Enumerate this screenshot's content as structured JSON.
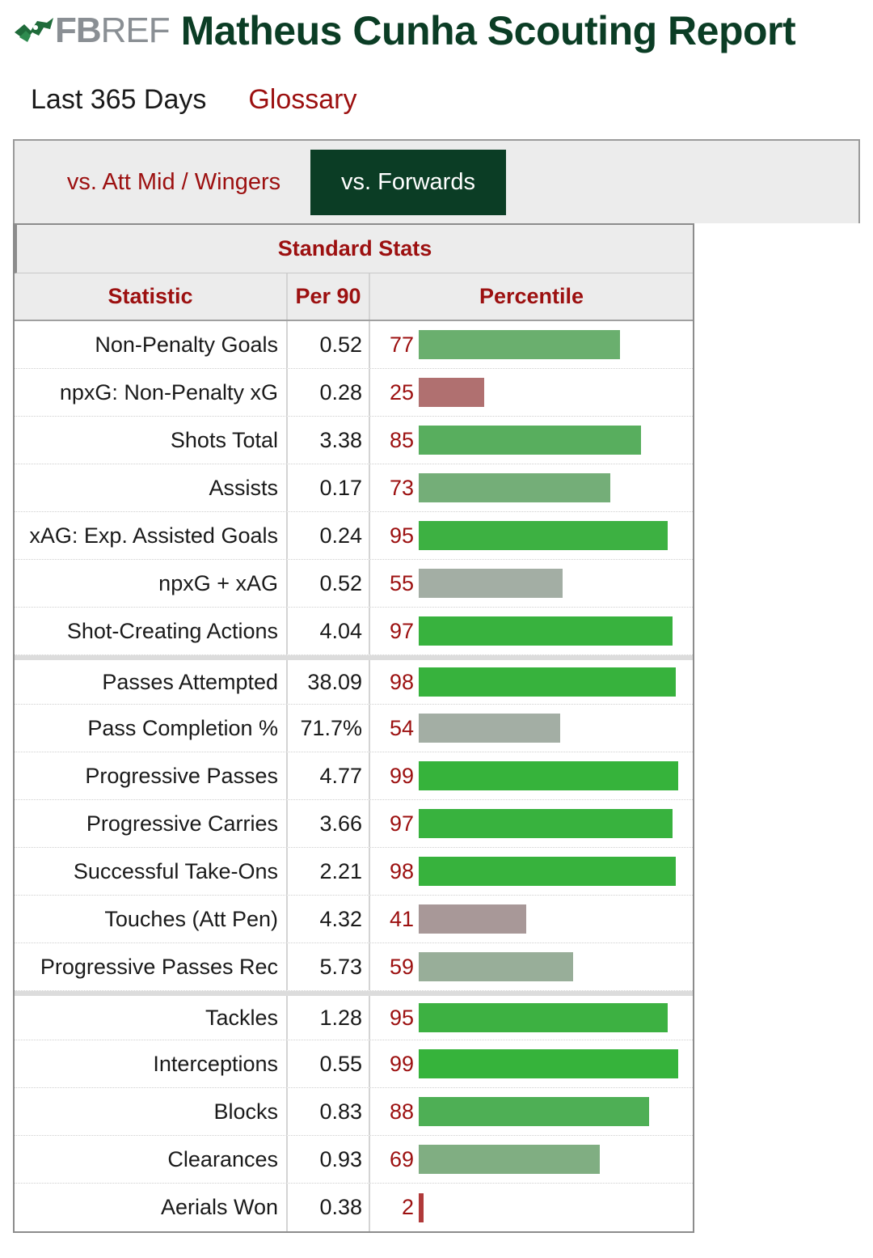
{
  "header": {
    "logo_fb": "FB",
    "logo_ref": "REF",
    "title": "Matheus Cunha Scouting Report"
  },
  "subnav": {
    "period": "Last 365 Days",
    "glossary": "Glossary"
  },
  "tabs": [
    {
      "label": "vs. Att Mid / Wingers",
      "active": false
    },
    {
      "label": "vs. Forwards",
      "active": true
    }
  ],
  "table": {
    "caption": "Standard Stats",
    "columns": [
      "Statistic",
      "Per 90",
      "Percentile"
    ],
    "rows": [
      {
        "stat": "Non-Penalty Goals",
        "per90": "0.52",
        "pct": 77,
        "color": "#6aaf6e"
      },
      {
        "stat": "npxG: Non-Penalty xG",
        "per90": "0.28",
        "pct": 25,
        "color": "#b07070"
      },
      {
        "stat": "Shots Total",
        "per90": "3.38",
        "pct": 85,
        "color": "#58ae5e"
      },
      {
        "stat": "Assists",
        "per90": "0.17",
        "pct": 73,
        "color": "#74ae78"
      },
      {
        "stat": "xAG: Exp. Assisted Goals",
        "per90": "0.24",
        "pct": 95,
        "color": "#3db142"
      },
      {
        "stat": "npxG + xAG",
        "per90": "0.52",
        "pct": 55,
        "color": "#a3aea4"
      },
      {
        "stat": "Shot-Creating Actions",
        "per90": "4.04",
        "pct": 97,
        "color": "#38b23e"
      },
      {
        "stat": "Passes Attempted",
        "per90": "38.09",
        "pct": 98,
        "color": "#37b23d",
        "sep": true
      },
      {
        "stat": "Pass Completion %",
        "per90": "71.7%",
        "pct": 54,
        "color": "#a3aea4"
      },
      {
        "stat": "Progressive Passes",
        "per90": "4.77",
        "pct": 99,
        "color": "#36b33b"
      },
      {
        "stat": "Progressive Carries",
        "per90": "3.66",
        "pct": 97,
        "color": "#38b23e"
      },
      {
        "stat": "Successful Take-Ons",
        "per90": "2.21",
        "pct": 98,
        "color": "#37b23d"
      },
      {
        "stat": "Touches (Att Pen)",
        "per90": "4.32",
        "pct": 41,
        "color": "#a89898"
      },
      {
        "stat": "Progressive Passes Rec",
        "per90": "5.73",
        "pct": 59,
        "color": "#98ae99"
      },
      {
        "stat": "Tackles",
        "per90": "1.28",
        "pct": 95,
        "color": "#3db142",
        "sep": true
      },
      {
        "stat": "Interceptions",
        "per90": "0.55",
        "pct": 99,
        "color": "#36b33b"
      },
      {
        "stat": "Blocks",
        "per90": "0.83",
        "pct": 88,
        "color": "#4eaf55"
      },
      {
        "stat": "Clearances",
        "per90": "0.93",
        "pct": 69,
        "color": "#80ae82"
      },
      {
        "stat": "Aerials Won",
        "per90": "0.38",
        "pct": 2,
        "color": "#b03a3a"
      }
    ]
  }
}
